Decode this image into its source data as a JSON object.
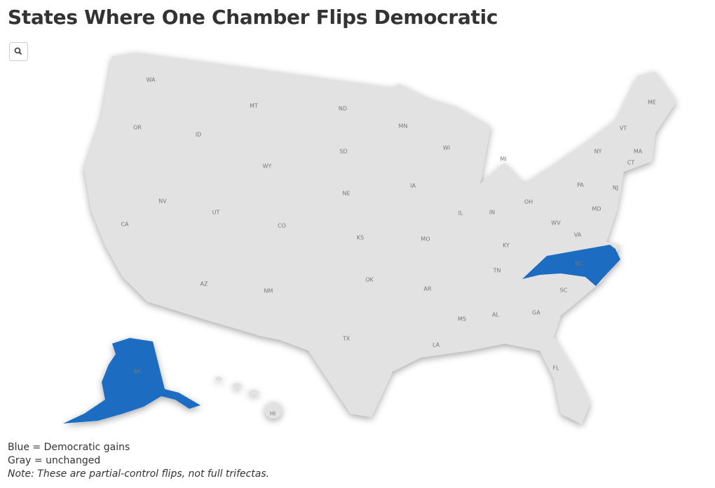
{
  "title": "States Where One Chamber Flips Democratic",
  "map": {
    "colors": {
      "flipped": "#1f6cc1",
      "unchanged": "#e2e2e2"
    },
    "states": [
      {
        "label": "WA",
        "flipped": false
      },
      {
        "label": "OR",
        "flipped": false
      },
      {
        "label": "CA",
        "flipped": false
      },
      {
        "label": "NV",
        "flipped": false
      },
      {
        "label": "ID",
        "flipped": false
      },
      {
        "label": "MT",
        "flipped": false
      },
      {
        "label": "WY",
        "flipped": false
      },
      {
        "label": "UT",
        "flipped": false
      },
      {
        "label": "CO",
        "flipped": false
      },
      {
        "label": "AZ",
        "flipped": false
      },
      {
        "label": "NM",
        "flipped": false
      },
      {
        "label": "ND",
        "flipped": false
      },
      {
        "label": "SD",
        "flipped": false
      },
      {
        "label": "NE",
        "flipped": false
      },
      {
        "label": "KS",
        "flipped": false
      },
      {
        "label": "OK",
        "flipped": false
      },
      {
        "label": "TX",
        "flipped": false
      },
      {
        "label": "MN",
        "flipped": false
      },
      {
        "label": "IA",
        "flipped": false
      },
      {
        "label": "MO",
        "flipped": false
      },
      {
        "label": "AR",
        "flipped": false
      },
      {
        "label": "LA",
        "flipped": false
      },
      {
        "label": "WI",
        "flipped": false
      },
      {
        "label": "IL",
        "flipped": false
      },
      {
        "label": "MS",
        "flipped": false
      },
      {
        "label": "MI",
        "flipped": false
      },
      {
        "label": "IN",
        "flipped": false
      },
      {
        "label": "KY",
        "flipped": false
      },
      {
        "label": "TN",
        "flipped": false
      },
      {
        "label": "AL",
        "flipped": false
      },
      {
        "label": "OH",
        "flipped": false
      },
      {
        "label": "GA",
        "flipped": false
      },
      {
        "label": "FL",
        "flipped": false
      },
      {
        "label": "SC",
        "flipped": false
      },
      {
        "label": "NC",
        "flipped": true
      },
      {
        "label": "VA",
        "flipped": false
      },
      {
        "label": "WV",
        "flipped": false
      },
      {
        "label": "PA",
        "flipped": false
      },
      {
        "label": "NY",
        "flipped": false
      },
      {
        "label": "VT",
        "flipped": false
      },
      {
        "label": "ME",
        "flipped": false
      },
      {
        "label": "MA",
        "flipped": false
      },
      {
        "label": "CT",
        "flipped": false
      },
      {
        "label": "NJ",
        "flipped": false
      },
      {
        "label": "MD",
        "flipped": false
      },
      {
        "label": "AK",
        "flipped": true
      },
      {
        "label": "HI",
        "flipped": false
      }
    ]
  },
  "notes": [
    "Blue = Democratic gains",
    "Gray = unchanged",
    "Note: These are partial-control flips, not full trifectas."
  ]
}
